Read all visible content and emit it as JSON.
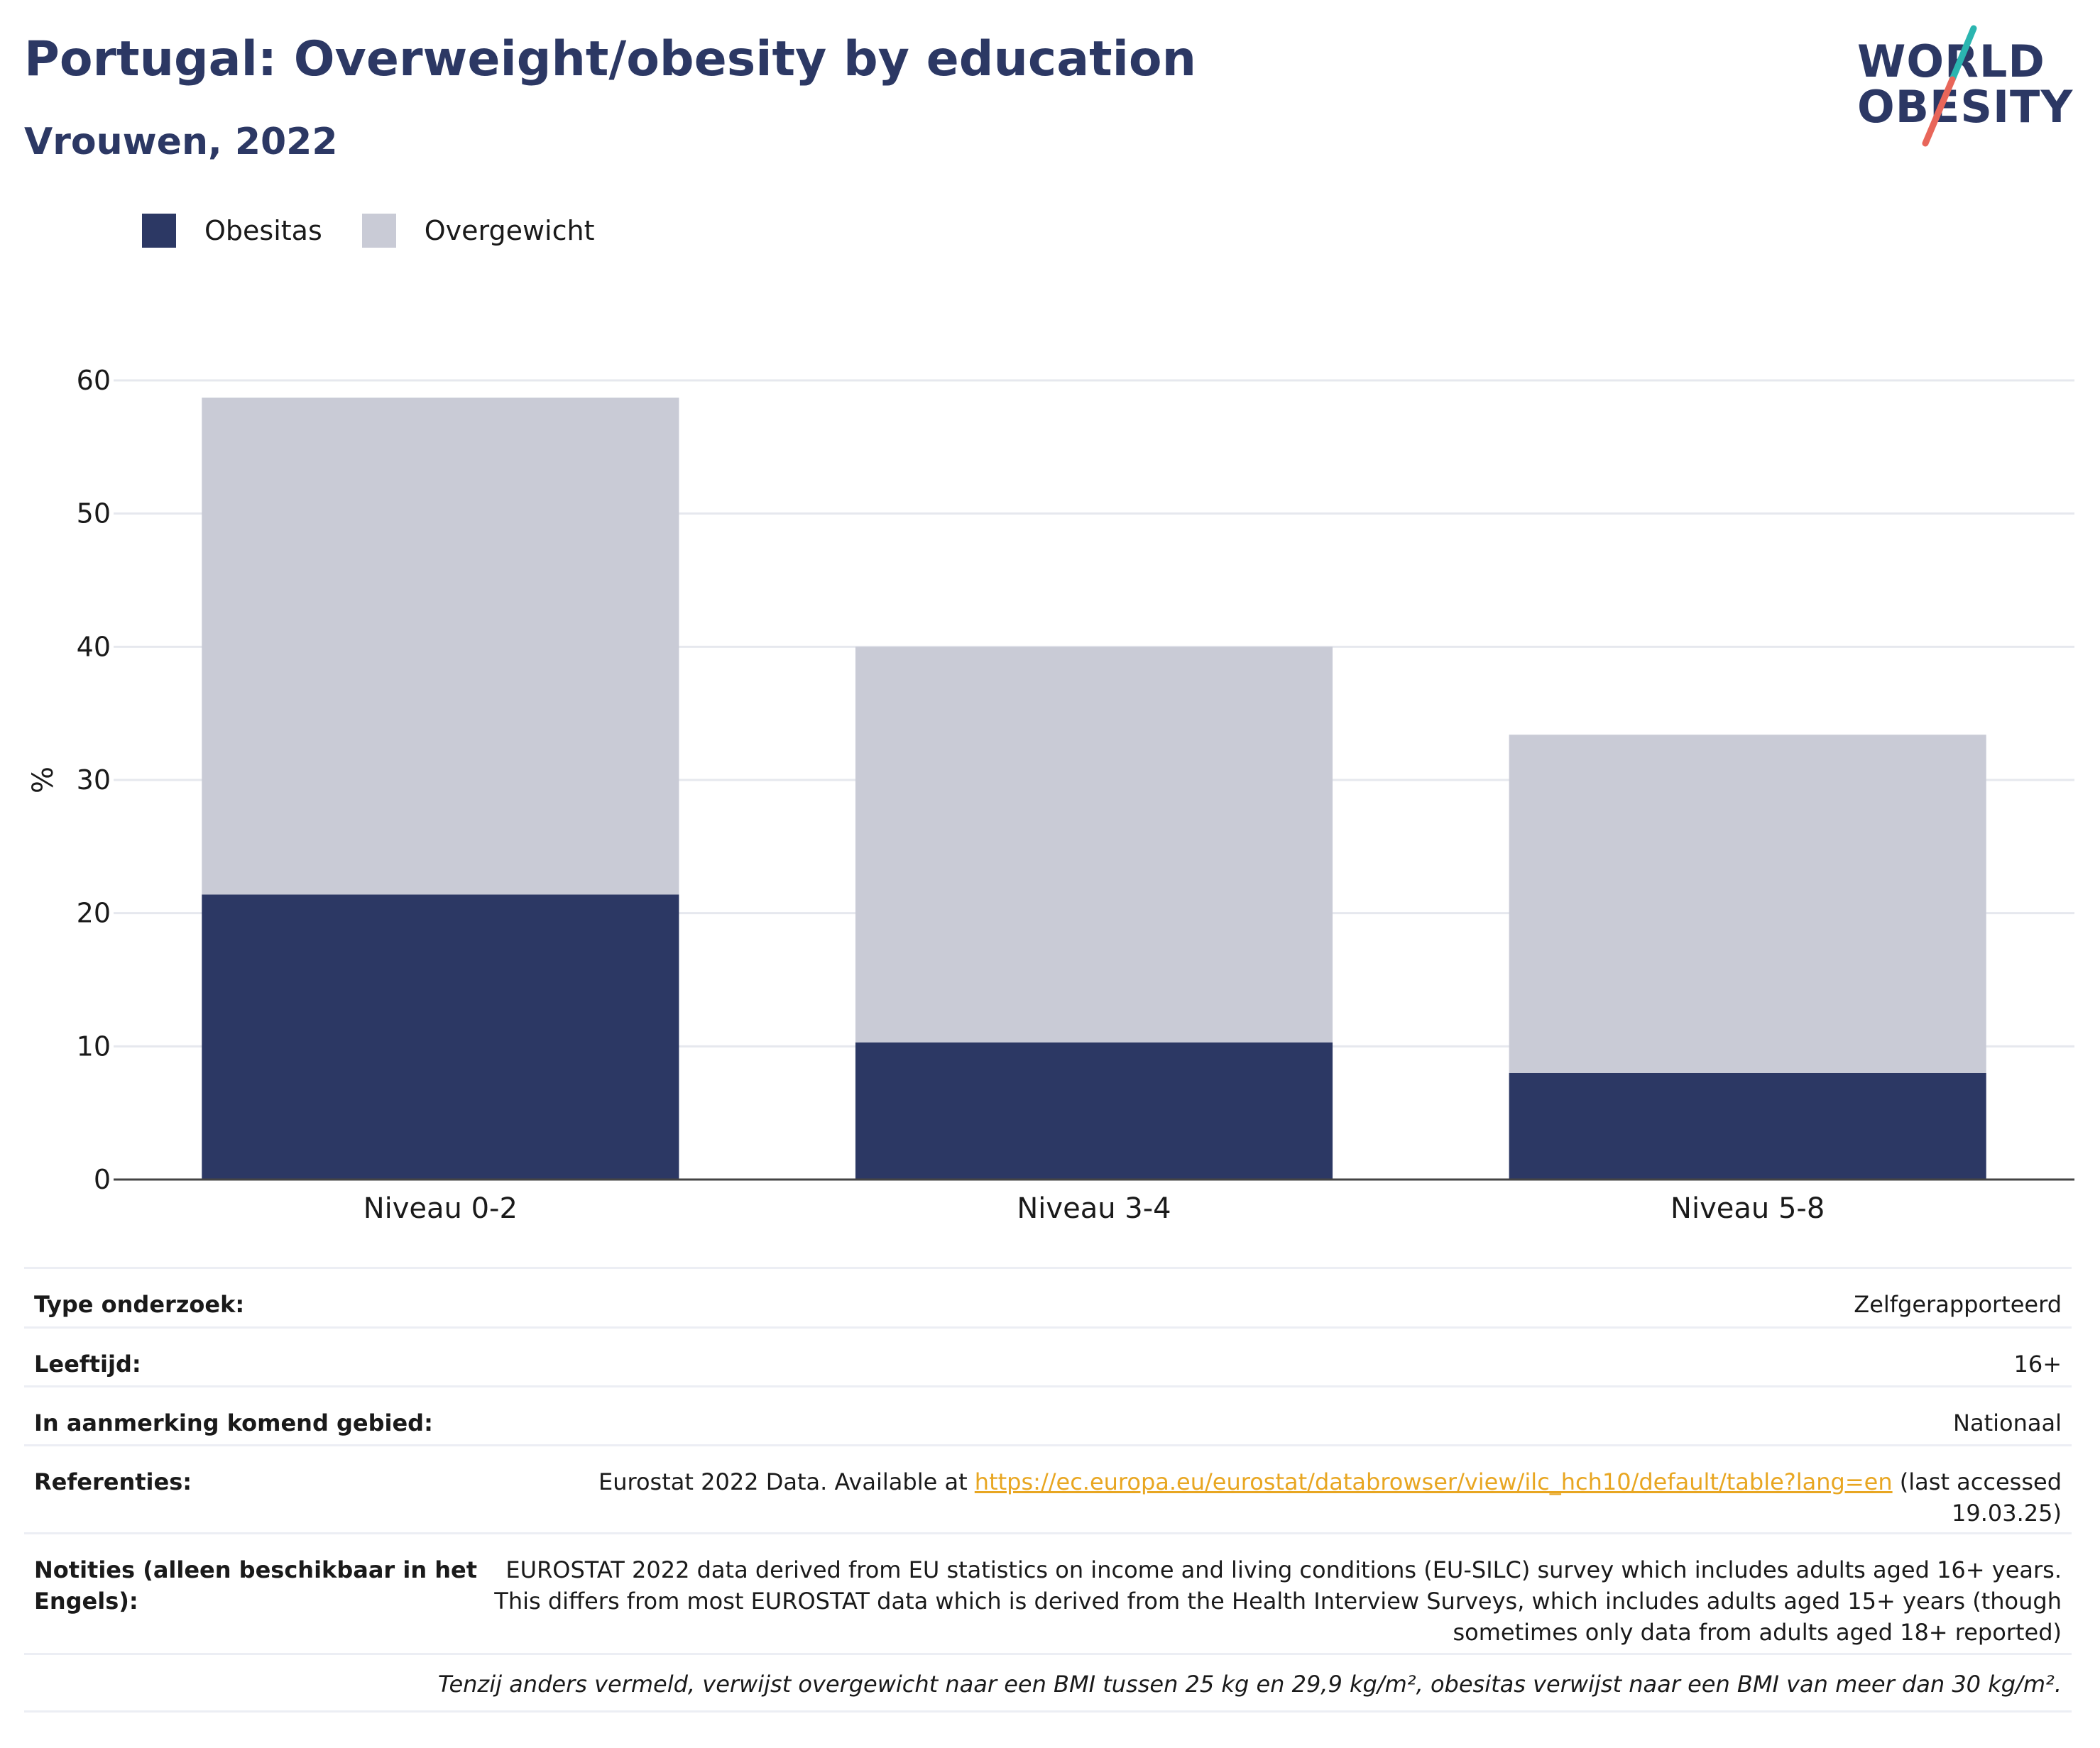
{
  "header": {
    "title": "Portugal: Overweight/obesity by education",
    "subtitle": "Vrouwen, 2022"
  },
  "logo": {
    "line1": "WORLD",
    "line2": "OBESITY",
    "accent_teal": "#2bb5b0",
    "accent_coral": "#e8665a"
  },
  "legend": {
    "items": [
      {
        "label": "Obesitas",
        "color": "#2c3864"
      },
      {
        "label": "Overgewicht",
        "color": "#c9cbd6"
      }
    ]
  },
  "chart_data": {
    "type": "bar",
    "stacked": true,
    "categories": [
      "Niveau 0-2",
      "Niveau 3-4",
      "Niveau 5-8"
    ],
    "series": [
      {
        "name": "Obesitas",
        "color": "#2c3864",
        "values": [
          21.4,
          10.3,
          8.0
        ]
      },
      {
        "name": "Overgewicht",
        "color": "#c9cbd6",
        "values": [
          37.3,
          29.7,
          25.4
        ]
      }
    ],
    "ylabel": "%",
    "ylim": [
      0,
      60
    ],
    "yticks": [
      "0",
      "10",
      "20",
      "30",
      "40",
      "50",
      "60"
    ],
    "grid": true,
    "legend_position": "top-left"
  },
  "info": {
    "rows": [
      {
        "key": "Type onderzoek:",
        "value": "Zelfgerapporteerd"
      },
      {
        "key": "Leeftijd:",
        "value": "16+"
      },
      {
        "key": "In aanmerking komend gebied:",
        "value": "Nationaal"
      }
    ],
    "references": {
      "key": "Referenties:",
      "prefix": "Eurostat 2022 Data. Available at ",
      "link": "https://ec.europa.eu/eurostat/databrowser/view/ilc_hch10/default/table?lang=en",
      "suffix": " (last accessed 19.03.25)"
    },
    "notes": {
      "key": "Notities (alleen beschikbaar in het Engels):",
      "value": "EUROSTAT 2022 data derived from EU statistics on income and living conditions (EU-SILC) survey which includes adults aged 16+ years. This differs from most EUROSTAT data which is derived from the Health Interview Surveys, which includes adults aged 15+ years (though sometimes only data from adults aged 18+ reported)"
    },
    "footnote": "Tenzij anders vermeld, verwijst overgewicht naar een BMI tussen 25 kg en 29,9 kg/m², obesitas verwijst naar een BMI van meer dan 30 kg/m²."
  }
}
